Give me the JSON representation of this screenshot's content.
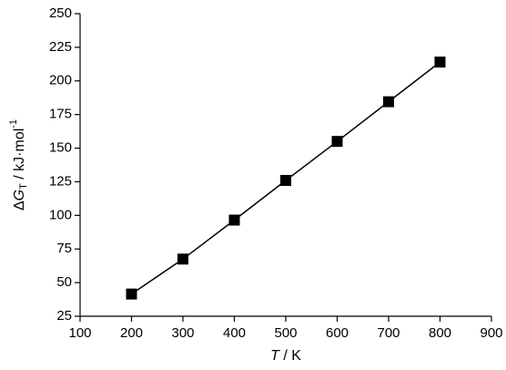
{
  "chart_data": {
    "type": "scatter",
    "xlabel_parts": [
      "T",
      " / K"
    ],
    "ylabel_parts": [
      "Δ",
      "G",
      "T",
      " / kJ·mol",
      "-1"
    ],
    "series": [
      {
        "color": "#000000",
        "x": [
          200,
          300,
          400,
          500,
          600,
          700,
          800
        ],
        "values": [
          41.5,
          67.5,
          96.5,
          126,
          155,
          184.5,
          214
        ]
      }
    ],
    "xlim": [
      100,
      900
    ],
    "xticks": [
      100,
      200,
      300,
      400,
      500,
      600,
      700,
      800,
      900
    ],
    "ylim": [
      25,
      250
    ],
    "yticks": [
      25,
      50,
      75,
      100,
      125,
      150,
      175,
      200,
      225,
      250
    ],
    "line": true
  }
}
